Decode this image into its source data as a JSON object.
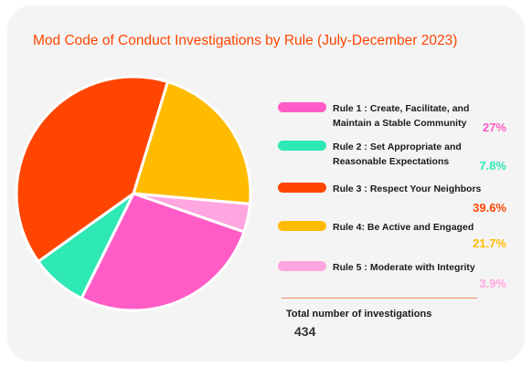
{
  "chart_data": {
    "type": "pie",
    "title": "Mod Code of Conduct Investigations by Rule (July-December 2023)",
    "categories": [
      "Rule 1 : Create, Facilitate, and Maintain a Stable Community",
      "Rule 2 : Set Appropriate and Reasonable Expectations",
      "Rule 3 : Respect Your Neighbors",
      "Rule 4: Be Active and Engaged",
      "Rule 5 : Moderate with Integrity"
    ],
    "values": [
      27,
      7.8,
      39.6,
      21.7,
      3.9
    ],
    "value_labels": [
      "27%",
      "7.8%",
      "39.6%",
      "21.7%",
      "3.9%"
    ],
    "colors": [
      "#ff5cc8",
      "#2ee8b6",
      "#ff4500",
      "#ffbb00",
      "#ffa6e0"
    ],
    "legend_position": "right",
    "total_label": "Total number of investigations",
    "total_value": "434"
  }
}
